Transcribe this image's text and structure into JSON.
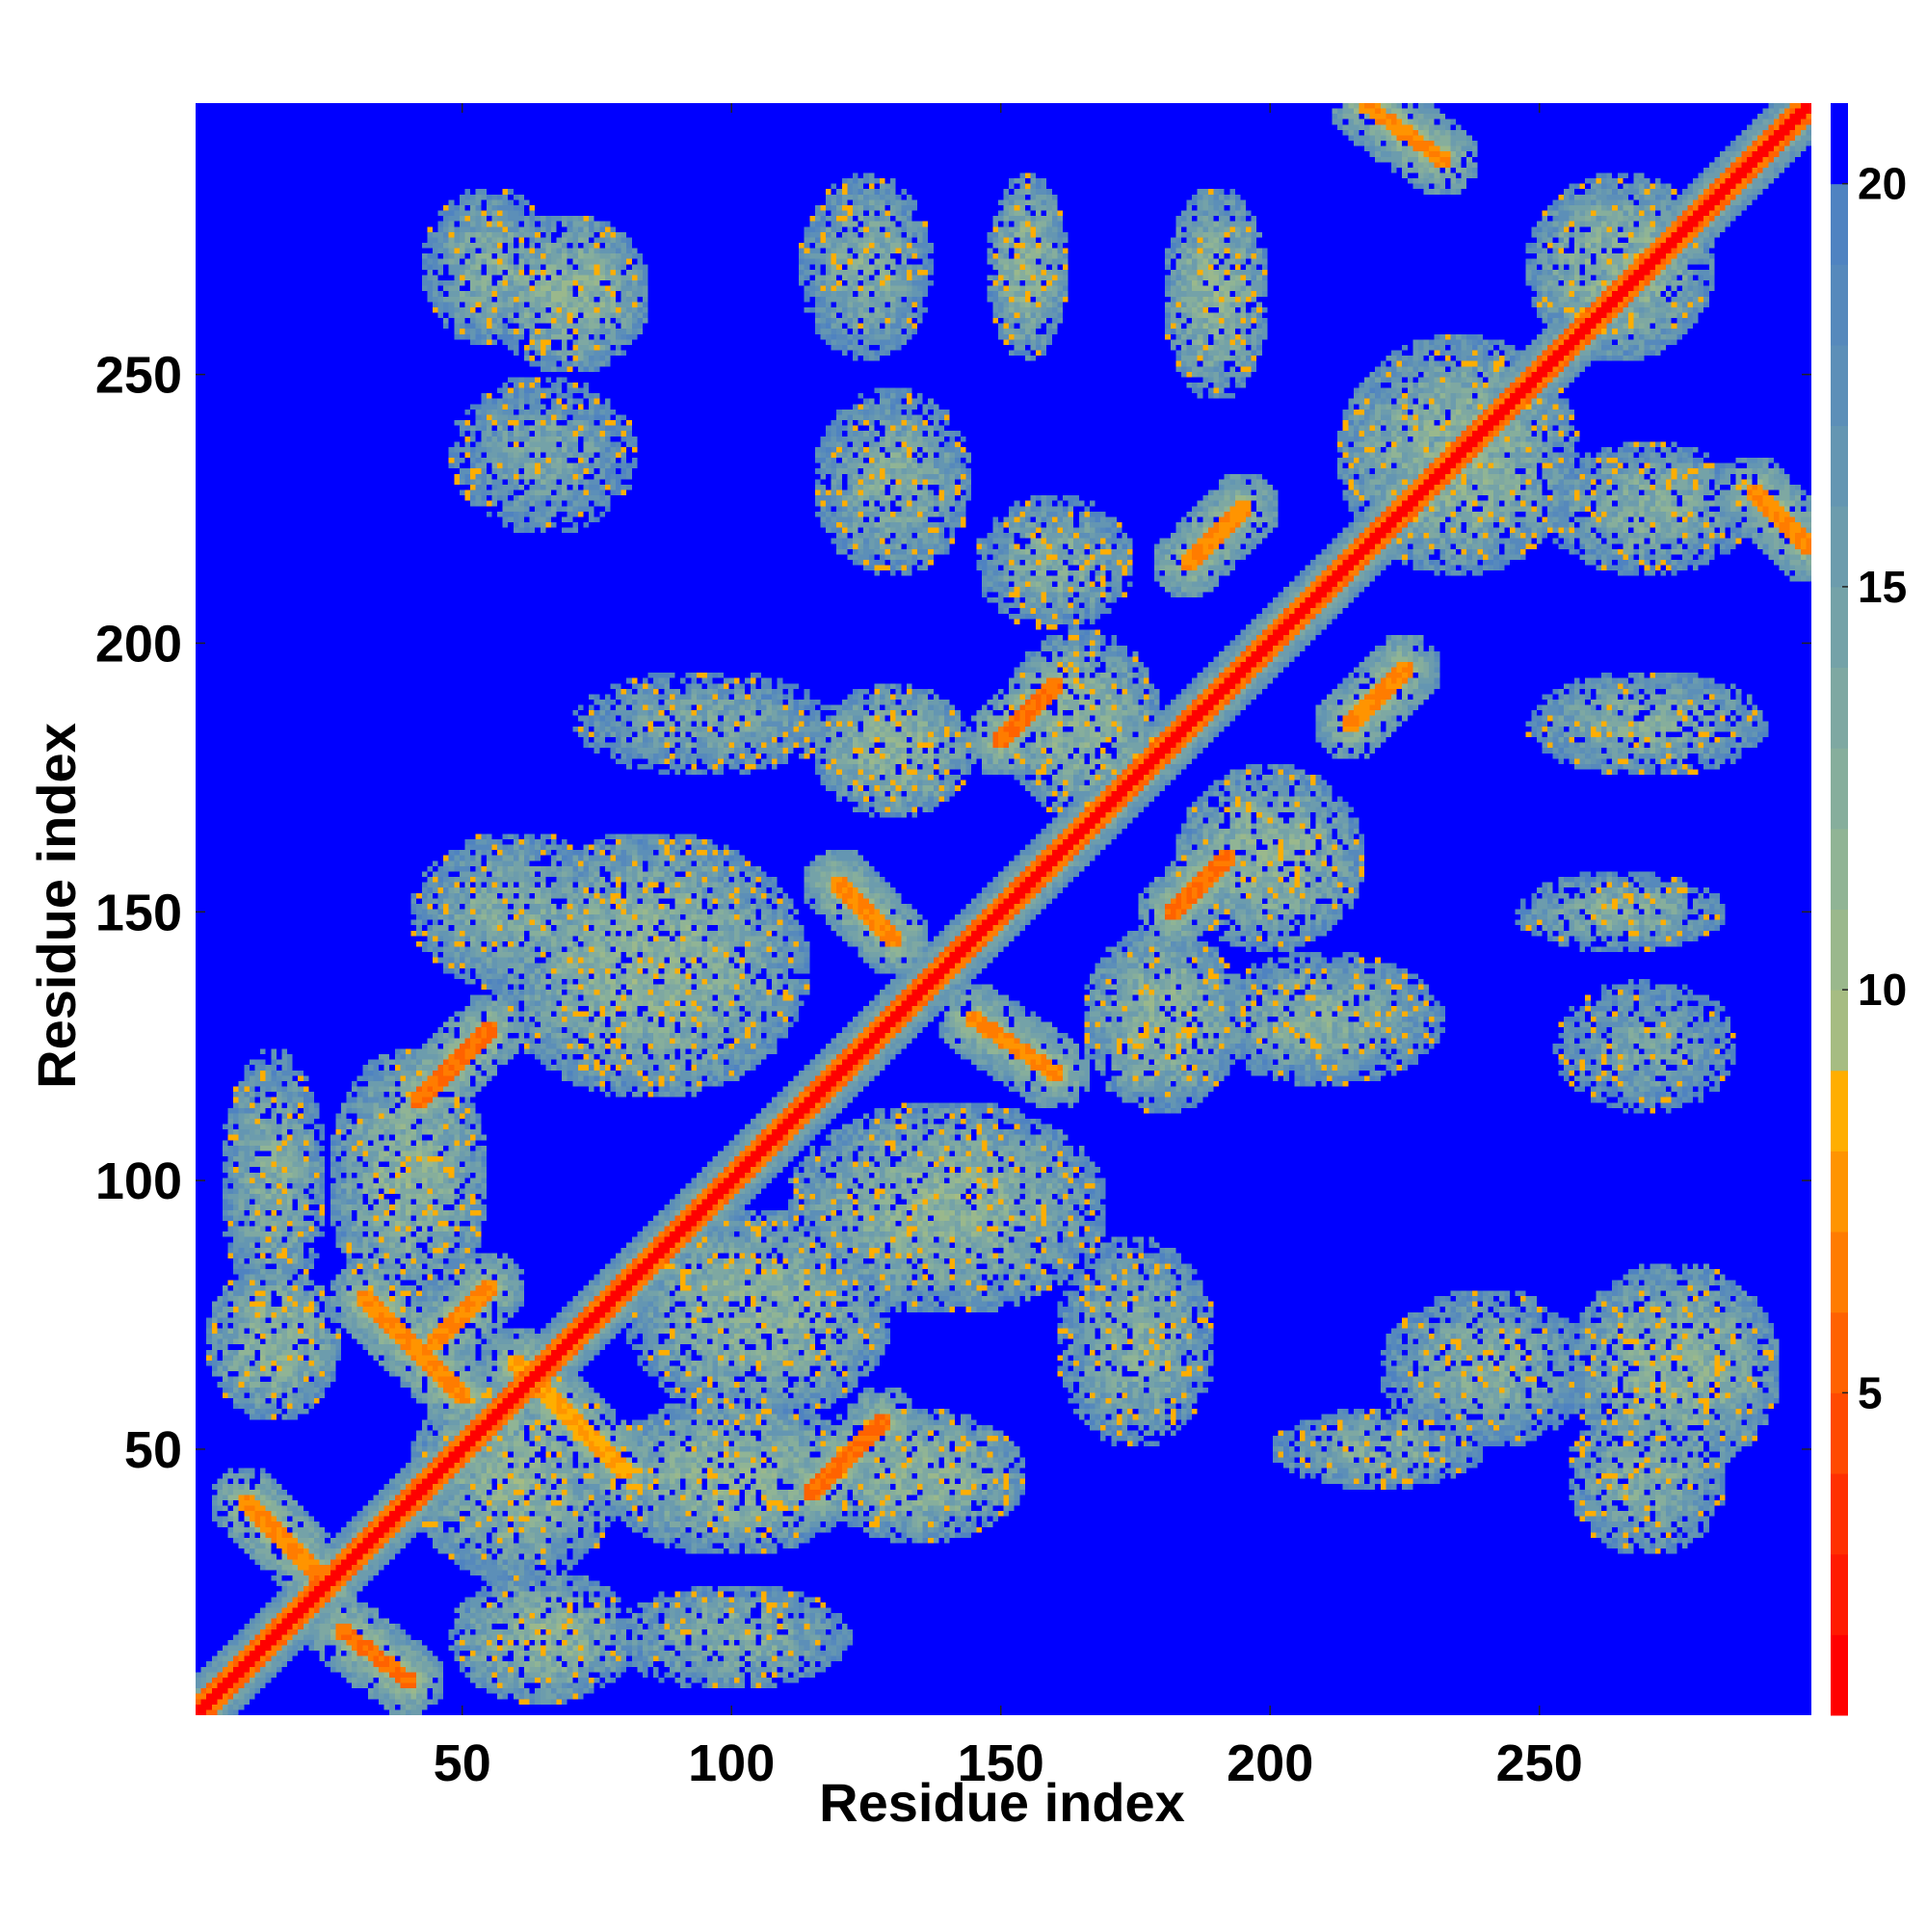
{
  "chart_data": {
    "type": "heatmap",
    "title": "",
    "xlabel": "Residue index",
    "ylabel": "Residue index",
    "n_residues": 300,
    "xlim": [
      1,
      300
    ],
    "ylim": [
      1,
      300
    ],
    "x_ticks": [
      50,
      100,
      150,
      200,
      250
    ],
    "y_ticks": [
      50,
      100,
      150,
      200,
      250
    ],
    "colorbar": {
      "ticks": [
        5,
        10,
        15,
        20
      ],
      "range": [
        1,
        21
      ],
      "levels": [
        {
          "lo": 1,
          "hi": 2,
          "color": "#ff0000"
        },
        {
          "lo": 2,
          "hi": 3,
          "color": "#ff1a00"
        },
        {
          "lo": 3,
          "hi": 4,
          "color": "#ff3000"
        },
        {
          "lo": 4,
          "hi": 5,
          "color": "#ff4a00"
        },
        {
          "lo": 5,
          "hi": 6,
          "color": "#ff6200"
        },
        {
          "lo": 6,
          "hi": 7,
          "color": "#ff7c00"
        },
        {
          "lo": 7,
          "hi": 8,
          "color": "#ff9400"
        },
        {
          "lo": 8,
          "hi": 9,
          "color": "#ffae00"
        },
        {
          "lo": 9,
          "hi": 10,
          "color": "#a6bc82"
        },
        {
          "lo": 10,
          "hi": 11,
          "color": "#9ab88c"
        },
        {
          "lo": 11,
          "hi": 12,
          "color": "#90b495"
        },
        {
          "lo": 12,
          "hi": 13,
          "color": "#86ae9c"
        },
        {
          "lo": 13,
          "hi": 14,
          "color": "#7ea8a2"
        },
        {
          "lo": 14,
          "hi": 15,
          "color": "#74a2a8"
        },
        {
          "lo": 15,
          "hi": 16,
          "color": "#6c9cad"
        },
        {
          "lo": 16,
          "hi": 17,
          "color": "#6496b2"
        },
        {
          "lo": 17,
          "hi": 18,
          "color": "#5c8fb8"
        },
        {
          "lo": 18,
          "hi": 19,
          "color": "#5689bc"
        },
        {
          "lo": 19,
          "hi": 20,
          "color": "#4f83c1"
        },
        {
          "lo": 20,
          "hi": 21,
          "color": "#0000ff"
        }
      ]
    },
    "background_value": 21,
    "description_of_features": "symmetric residue distance map with red main diagonal and off-diagonal contact patches",
    "features": [
      {
        "kind": "diagonal_band",
        "start": 1,
        "end": 300,
        "value": 1.5
      },
      {
        "kind": "anti_band",
        "from": [
          10,
          40
        ],
        "to": [
          25,
          25
        ],
        "value": 7
      },
      {
        "kind": "anti_band",
        "from": [
          28,
          16
        ],
        "to": [
          40,
          7
        ],
        "value": 6
      },
      {
        "kind": "anti_band",
        "from": [
          32,
          78
        ],
        "to": [
          50,
          60
        ],
        "value": 7
      },
      {
        "kind": "anti_band",
        "from": [
          60,
          66
        ],
        "to": [
          80,
          46
        ],
        "value": 8
      },
      {
        "kind": "parallel_band",
        "from": [
          42,
          115
        ],
        "to": [
          55,
          128
        ],
        "value": 6
      },
      {
        "kind": "parallel_band",
        "from": [
          45,
          70
        ],
        "to": [
          55,
          80
        ],
        "value": 7
      },
      {
        "kind": "parallel_band",
        "from": [
          115,
          42
        ],
        "to": [
          128,
          55
        ],
        "value": 6
      },
      {
        "kind": "parallel_band",
        "from": [
          150,
          182
        ],
        "to": [
          160,
          192
        ],
        "value": 6
      },
      {
        "kind": "parallel_band",
        "from": [
          182,
          150
        ],
        "to": [
          192,
          160
        ],
        "value": 6
      },
      {
        "kind": "parallel_band",
        "from": [
          185,
          215
        ],
        "to": [
          195,
          225
        ],
        "value": 7
      },
      {
        "kind": "parallel_band",
        "from": [
          215,
          185
        ],
        "to": [
          225,
          195
        ],
        "value": 7
      },
      {
        "kind": "anti_band",
        "from": [
          120,
          155
        ],
        "to": [
          130,
          145
        ],
        "value": 7
      },
      {
        "kind": "anti_band",
        "from": [
          145,
          130
        ],
        "to": [
          160,
          120
        ],
        "value": 7
      },
      {
        "kind": "anti_band",
        "from": [
          218,
          300
        ],
        "to": [
          232,
          290
        ],
        "value": 7
      },
      {
        "kind": "anti_band",
        "from": [
          290,
          228
        ],
        "to": [
          300,
          218
        ],
        "value": 7
      },
      {
        "kind": "patch",
        "center": [
          55,
          270
        ],
        "size": [
          25,
          30
        ],
        "value": 13
      },
      {
        "kind": "patch",
        "center": [
          70,
          265
        ],
        "size": [
          30,
          30
        ],
        "value": 12
      },
      {
        "kind": "patch",
        "center": [
          125,
          270
        ],
        "size": [
          25,
          35
        ],
        "value": 13
      },
      {
        "kind": "patch",
        "center": [
          155,
          270
        ],
        "size": [
          15,
          35
        ],
        "value": 12
      },
      {
        "kind": "patch",
        "center": [
          190,
          265
        ],
        "size": [
          20,
          40
        ],
        "value": 12
      },
      {
        "kind": "patch",
        "center": [
          265,
          270
        ],
        "size": [
          35,
          35
        ],
        "value": 12
      },
      {
        "kind": "patch",
        "center": [
          65,
          235
        ],
        "size": [
          35,
          30
        ],
        "value": 14
      },
      {
        "kind": "patch",
        "center": [
          130,
          230
        ],
        "size": [
          30,
          35
        ],
        "value": 13
      },
      {
        "kind": "patch",
        "center": [
          160,
          215
        ],
        "size": [
          30,
          25
        ],
        "value": 13
      },
      {
        "kind": "patch",
        "center": [
          235,
          235
        ],
        "size": [
          45,
          45
        ],
        "value": 12
      },
      {
        "kind": "patch",
        "center": [
          270,
          225
        ],
        "size": [
          40,
          25
        ],
        "value": 13
      },
      {
        "kind": "patch",
        "center": [
          270,
          185
        ],
        "size": [
          45,
          20
        ],
        "value": 13
      },
      {
        "kind": "patch",
        "center": [
          265,
          150
        ],
        "size": [
          40,
          15
        ],
        "value": 13
      },
      {
        "kind": "patch",
        "center": [
          270,
          125
        ],
        "size": [
          35,
          25
        ],
        "value": 14
      },
      {
        "kind": "patch",
        "center": [
          210,
          130
        ],
        "size": [
          45,
          25
        ],
        "value": 13
      },
      {
        "kind": "patch",
        "center": [
          180,
          130
        ],
        "size": [
          30,
          35
        ],
        "value": 12
      },
      {
        "kind": "patch",
        "center": [
          200,
          160
        ],
        "size": [
          35,
          35
        ],
        "value": 12
      },
      {
        "kind": "patch",
        "center": [
          165,
          185
        ],
        "size": [
          30,
          35
        ],
        "value": 12
      },
      {
        "kind": "patch",
        "center": [
          130,
          180
        ],
        "size": [
          30,
          25
        ],
        "value": 12
      },
      {
        "kind": "patch",
        "center": [
          85,
          140
        ],
        "size": [
          60,
          50
        ],
        "value": 12
      },
      {
        "kind": "patch",
        "center": [
          95,
          185
        ],
        "size": [
          50,
          20
        ],
        "value": 14
      },
      {
        "kind": "patch",
        "center": [
          60,
          150
        ],
        "size": [
          40,
          30
        ],
        "value": 13
      },
      {
        "kind": "patch",
        "center": [
          40,
          100
        ],
        "size": [
          30,
          50
        ],
        "value": 12
      },
      {
        "kind": "patch",
        "center": [
          15,
          100
        ],
        "size": [
          20,
          50
        ],
        "value": 13
      },
      {
        "kind": "patch",
        "center": [
          105,
          75
        ],
        "size": [
          50,
          40
        ],
        "value": 12
      },
      {
        "kind": "patch",
        "center": [
          140,
          95
        ],
        "size": [
          60,
          40
        ],
        "value": 12
      },
      {
        "kind": "patch",
        "center": [
          100,
          45
        ],
        "size": [
          50,
          30
        ],
        "value": 12
      },
      {
        "kind": "patch",
        "center": [
          135,
          45
        ],
        "size": [
          40,
          25
        ],
        "value": 12
      },
      {
        "kind": "patch",
        "center": [
          175,
          70
        ],
        "size": [
          30,
          40
        ],
        "value": 13
      },
      {
        "kind": "patch",
        "center": [
          240,
          65
        ],
        "size": [
          40,
          30
        ],
        "value": 13
      },
      {
        "kind": "patch",
        "center": [
          275,
          65
        ],
        "size": [
          40,
          40
        ],
        "value": 12
      },
      {
        "kind": "patch",
        "center": [
          270,
          45
        ],
        "size": [
          30,
          30
        ],
        "value": 13
      },
      {
        "kind": "patch",
        "center": [
          65,
          15
        ],
        "size": [
          35,
          25
        ],
        "value": 12
      },
      {
        "kind": "patch",
        "center": [
          100,
          15
        ],
        "size": [
          45,
          20
        ],
        "value": 13
      },
      {
        "kind": "patch",
        "center": [
          15,
          70
        ],
        "size": [
          25,
          30
        ],
        "value": 12
      },
      {
        "kind": "patch",
        "center": [
          60,
          45
        ],
        "size": [
          40,
          40
        ],
        "value": 12
      },
      {
        "kind": "patch",
        "center": [
          220,
          50
        ],
        "size": [
          40,
          15
        ],
        "value": 13
      }
    ]
  }
}
